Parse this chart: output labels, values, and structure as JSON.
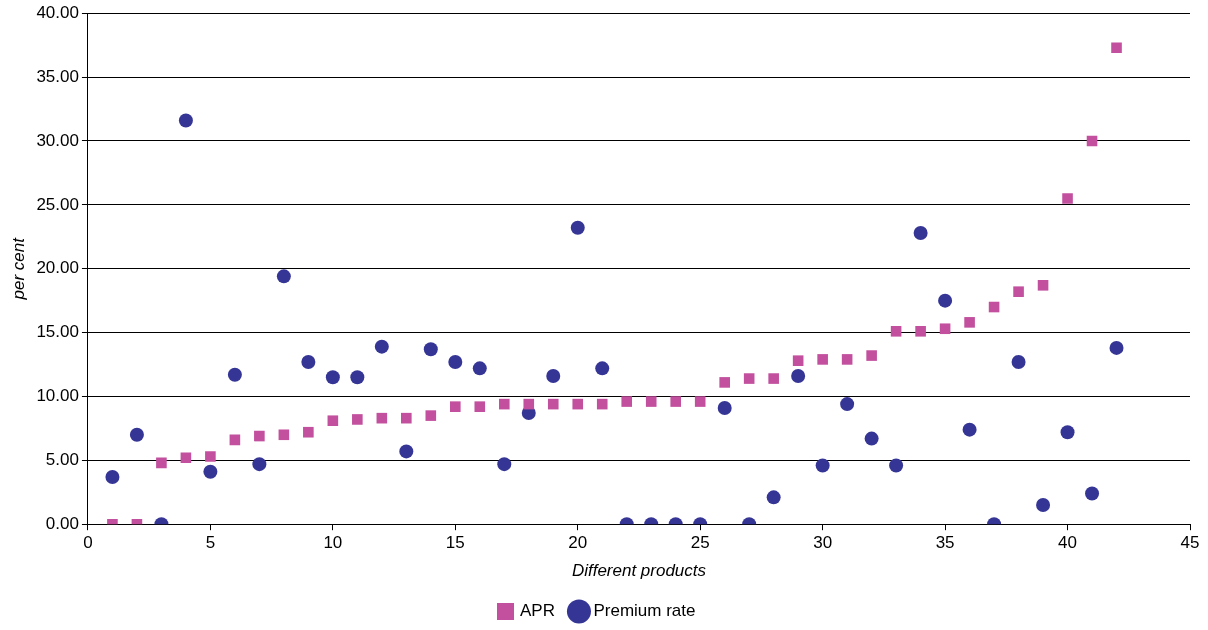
{
  "chart_data": {
    "type": "scatter",
    "xlabel": "Different products",
    "ylabel": "per cent",
    "xlim": [
      0,
      45
    ],
    "xticks": [
      0,
      5,
      10,
      15,
      20,
      25,
      30,
      35,
      40,
      45
    ],
    "ylim": [
      0,
      40
    ],
    "yticks": [
      {
        "value": 0,
        "label": "0.00"
      },
      {
        "value": 5,
        "label": "5.00"
      },
      {
        "value": 10,
        "label": "10.00"
      },
      {
        "value": 15,
        "label": "15.00"
      },
      {
        "value": 20,
        "label": "20.00"
      },
      {
        "value": 25,
        "label": "25.00"
      },
      {
        "value": 30,
        "label": "30.00"
      },
      {
        "value": 35,
        "label": "35.00"
      },
      {
        "value": 40,
        "label": "40.00"
      }
    ],
    "grid": "y",
    "legend": "bottom",
    "x": [
      1,
      2,
      3,
      4,
      5,
      6,
      7,
      8,
      9,
      10,
      11,
      12,
      13,
      14,
      15,
      16,
      17,
      18,
      19,
      20,
      21,
      22,
      23,
      24,
      25,
      26,
      27,
      28,
      29,
      30,
      31,
      32,
      33,
      34,
      35,
      36,
      37,
      38,
      39,
      40,
      41,
      42
    ],
    "series": [
      {
        "name": "APR",
        "color": "#c2509e",
        "marker": "square",
        "values": [
          0,
          0,
          4.8,
          5.2,
          5.3,
          6.6,
          6.9,
          7.0,
          7.2,
          8.1,
          8.2,
          8.3,
          8.3,
          8.5,
          9.2,
          9.2,
          9.4,
          9.4,
          9.4,
          9.4,
          9.4,
          9.6,
          9.6,
          9.6,
          9.6,
          11.1,
          11.4,
          11.4,
          12.8,
          12.9,
          12.9,
          13.2,
          15.1,
          15.1,
          15.3,
          15.8,
          17.0,
          18.2,
          18.7,
          25.5,
          30.0,
          37.3
        ]
      },
      {
        "name": "Premium rate",
        "color": "#353596",
        "marker": "circle",
        "values": [
          3.7,
          7.0,
          0,
          31.6,
          4.1,
          11.7,
          4.7,
          19.4,
          12.7,
          11.5,
          11.5,
          13.9,
          5.7,
          13.7,
          12.7,
          12.2,
          4.7,
          8.7,
          11.6,
          23.2,
          12.2,
          0,
          0,
          0,
          0,
          9.1,
          0,
          2.1,
          11.6,
          4.6,
          9.4,
          6.7,
          4.6,
          22.8,
          17.5,
          7.4,
          0,
          12.7,
          1.5,
          7.2,
          2.4,
          13.8
        ]
      }
    ]
  }
}
